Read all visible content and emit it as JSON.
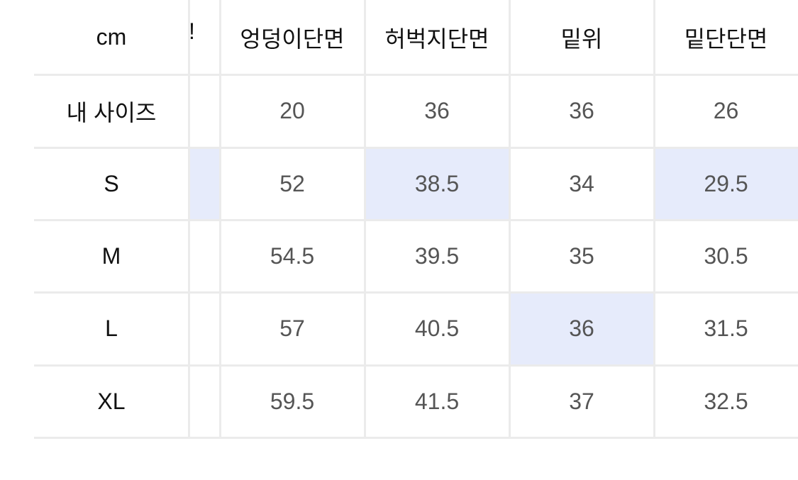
{
  "table": {
    "corner": "cm",
    "partial_column_header": "!",
    "columns": [
      "엉덩이단면",
      "허벅지단면",
      "밑위",
      "밑단단면"
    ],
    "rows": [
      {
        "label": "내 사이즈",
        "values": [
          "20",
          "36",
          "36",
          "26"
        ],
        "highlight": [
          false,
          false,
          false,
          false,
          false
        ]
      },
      {
        "label": "S",
        "values": [
          "52",
          "38.5",
          "34",
          "29.5"
        ],
        "highlight": [
          true,
          false,
          true,
          false,
          true
        ]
      },
      {
        "label": "M",
        "values": [
          "54.5",
          "39.5",
          "35",
          "30.5"
        ],
        "highlight": [
          false,
          false,
          false,
          false,
          false
        ]
      },
      {
        "label": "L",
        "values": [
          "57",
          "40.5",
          "36",
          "31.5"
        ],
        "highlight": [
          false,
          false,
          false,
          true,
          false
        ]
      },
      {
        "label": "XL",
        "values": [
          "59.5",
          "41.5",
          "37",
          "32.5"
        ],
        "highlight": [
          false,
          false,
          false,
          false,
          false
        ]
      }
    ],
    "highlight_color": "#e6ebfb",
    "grid_color": "#ebebeb"
  }
}
